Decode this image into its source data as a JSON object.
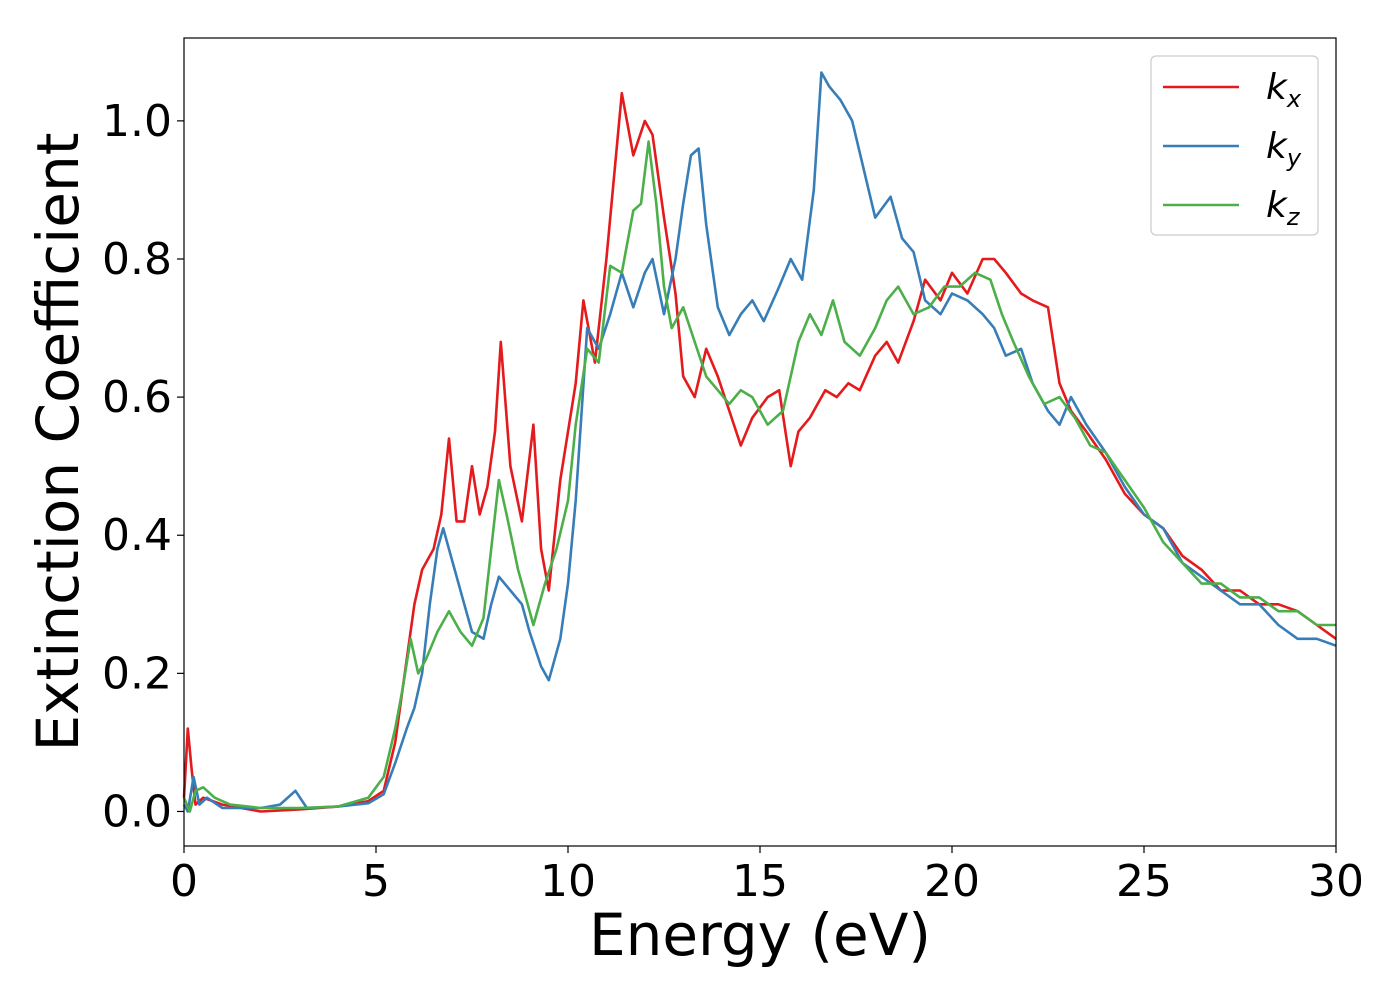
{
  "chart_data": {
    "type": "line",
    "xlabel": "Energy (eV)",
    "ylabel": "Extinction Coefficient",
    "xlim": [
      0,
      30
    ],
    "ylim": [
      -0.05,
      1.12
    ],
    "xticks": [
      "0",
      "5",
      "10",
      "15",
      "20",
      "25",
      "30"
    ],
    "yticks": [
      "0.0",
      "0.2",
      "0.4",
      "0.6",
      "0.8",
      "1.0"
    ],
    "grid": false,
    "legend_position": "top-right",
    "series": [
      {
        "name": "kx",
        "base": "k",
        "sub": "x",
        "color": "#e41a1c",
        "points": [
          [
            0,
            0.02
          ],
          [
            0.1,
            0.12
          ],
          [
            0.2,
            0.06
          ],
          [
            0.3,
            0.01
          ],
          [
            0.5,
            0.02
          ],
          [
            1,
            0.01
          ],
          [
            2,
            0.0
          ],
          [
            3,
            0.003
          ],
          [
            4,
            0.007
          ],
          [
            4.8,
            0.015
          ],
          [
            5.2,
            0.03
          ],
          [
            5.5,
            0.1
          ],
          [
            5.8,
            0.22
          ],
          [
            6.0,
            0.3
          ],
          [
            6.2,
            0.35
          ],
          [
            6.5,
            0.38
          ],
          [
            6.7,
            0.43
          ],
          [
            6.9,
            0.54
          ],
          [
            7.1,
            0.42
          ],
          [
            7.3,
            0.42
          ],
          [
            7.5,
            0.5
          ],
          [
            7.7,
            0.43
          ],
          [
            7.9,
            0.47
          ],
          [
            8.1,
            0.55
          ],
          [
            8.25,
            0.68
          ],
          [
            8.5,
            0.5
          ],
          [
            8.8,
            0.42
          ],
          [
            9.1,
            0.56
          ],
          [
            9.3,
            0.38
          ],
          [
            9.5,
            0.32
          ],
          [
            9.8,
            0.48
          ],
          [
            10.2,
            0.62
          ],
          [
            10.4,
            0.74
          ],
          [
            10.7,
            0.65
          ],
          [
            11.0,
            0.8
          ],
          [
            11.2,
            0.92
          ],
          [
            11.4,
            1.04
          ],
          [
            11.7,
            0.95
          ],
          [
            12.0,
            1.0
          ],
          [
            12.2,
            0.98
          ],
          [
            12.5,
            0.86
          ],
          [
            12.8,
            0.75
          ],
          [
            13.0,
            0.63
          ],
          [
            13.3,
            0.6
          ],
          [
            13.6,
            0.67
          ],
          [
            13.9,
            0.63
          ],
          [
            14.2,
            0.58
          ],
          [
            14.5,
            0.53
          ],
          [
            14.8,
            0.57
          ],
          [
            15.2,
            0.6
          ],
          [
            15.5,
            0.61
          ],
          [
            15.8,
            0.5
          ],
          [
            16.0,
            0.55
          ],
          [
            16.3,
            0.57
          ],
          [
            16.7,
            0.61
          ],
          [
            17.0,
            0.6
          ],
          [
            17.3,
            0.62
          ],
          [
            17.6,
            0.61
          ],
          [
            18.0,
            0.66
          ],
          [
            18.3,
            0.68
          ],
          [
            18.6,
            0.65
          ],
          [
            19.0,
            0.71
          ],
          [
            19.3,
            0.77
          ],
          [
            19.7,
            0.74
          ],
          [
            20.0,
            0.78
          ],
          [
            20.4,
            0.75
          ],
          [
            20.8,
            0.8
          ],
          [
            21.1,
            0.8
          ],
          [
            21.4,
            0.78
          ],
          [
            21.8,
            0.75
          ],
          [
            22.1,
            0.74
          ],
          [
            22.5,
            0.73
          ],
          [
            22.8,
            0.62
          ],
          [
            23.1,
            0.58
          ],
          [
            23.5,
            0.55
          ],
          [
            24.0,
            0.51
          ],
          [
            24.5,
            0.46
          ],
          [
            25.0,
            0.43
          ],
          [
            25.5,
            0.41
          ],
          [
            26.0,
            0.37
          ],
          [
            26.5,
            0.35
          ],
          [
            27.0,
            0.32
          ],
          [
            27.5,
            0.32
          ],
          [
            28.0,
            0.3
          ],
          [
            28.5,
            0.3
          ],
          [
            29.0,
            0.29
          ],
          [
            29.5,
            0.27
          ],
          [
            30.0,
            0.25
          ]
        ]
      },
      {
        "name": "ky",
        "base": "k",
        "sub": "y",
        "color": "#377eb8",
        "points": [
          [
            0,
            0.01
          ],
          [
            0.1,
            0.0
          ],
          [
            0.25,
            0.05
          ],
          [
            0.4,
            0.01
          ],
          [
            0.6,
            0.02
          ],
          [
            1,
            0.005
          ],
          [
            2,
            0.005
          ],
          [
            2.5,
            0.01
          ],
          [
            2.9,
            0.03
          ],
          [
            3.2,
            0.005
          ],
          [
            4,
            0.007
          ],
          [
            4.8,
            0.012
          ],
          [
            5.2,
            0.025
          ],
          [
            5.5,
            0.07
          ],
          [
            5.8,
            0.12
          ],
          [
            6.0,
            0.15
          ],
          [
            6.2,
            0.2
          ],
          [
            6.4,
            0.3
          ],
          [
            6.6,
            0.38
          ],
          [
            6.75,
            0.41
          ],
          [
            7.0,
            0.36
          ],
          [
            7.3,
            0.3
          ],
          [
            7.5,
            0.26
          ],
          [
            7.8,
            0.25
          ],
          [
            8.0,
            0.3
          ],
          [
            8.2,
            0.34
          ],
          [
            8.5,
            0.32
          ],
          [
            8.8,
            0.3
          ],
          [
            9.0,
            0.26
          ],
          [
            9.3,
            0.21
          ],
          [
            9.5,
            0.19
          ],
          [
            9.8,
            0.25
          ],
          [
            10.0,
            0.33
          ],
          [
            10.2,
            0.45
          ],
          [
            10.5,
            0.7
          ],
          [
            10.8,
            0.67
          ],
          [
            11.1,
            0.72
          ],
          [
            11.4,
            0.78
          ],
          [
            11.7,
            0.73
          ],
          [
            12.0,
            0.78
          ],
          [
            12.2,
            0.8
          ],
          [
            12.5,
            0.72
          ],
          [
            12.8,
            0.8
          ],
          [
            13.0,
            0.88
          ],
          [
            13.2,
            0.95
          ],
          [
            13.4,
            0.96
          ],
          [
            13.6,
            0.85
          ],
          [
            13.9,
            0.73
          ],
          [
            14.2,
            0.69
          ],
          [
            14.5,
            0.72
          ],
          [
            14.8,
            0.74
          ],
          [
            15.1,
            0.71
          ],
          [
            15.5,
            0.76
          ],
          [
            15.8,
            0.8
          ],
          [
            16.1,
            0.77
          ],
          [
            16.4,
            0.9
          ],
          [
            16.6,
            1.07
          ],
          [
            16.8,
            1.05
          ],
          [
            17.1,
            1.03
          ],
          [
            17.4,
            1.0
          ],
          [
            17.7,
            0.93
          ],
          [
            18.0,
            0.86
          ],
          [
            18.4,
            0.89
          ],
          [
            18.7,
            0.83
          ],
          [
            19.0,
            0.81
          ],
          [
            19.3,
            0.74
          ],
          [
            19.7,
            0.72
          ],
          [
            20.0,
            0.75
          ],
          [
            20.4,
            0.74
          ],
          [
            20.8,
            0.72
          ],
          [
            21.1,
            0.7
          ],
          [
            21.4,
            0.66
          ],
          [
            21.8,
            0.67
          ],
          [
            22.1,
            0.62
          ],
          [
            22.5,
            0.58
          ],
          [
            22.8,
            0.56
          ],
          [
            23.1,
            0.6
          ],
          [
            23.5,
            0.56
          ],
          [
            24.0,
            0.52
          ],
          [
            24.5,
            0.47
          ],
          [
            25.0,
            0.43
          ],
          [
            25.5,
            0.41
          ],
          [
            26.0,
            0.36
          ],
          [
            26.5,
            0.34
          ],
          [
            27.0,
            0.32
          ],
          [
            27.5,
            0.3
          ],
          [
            28.0,
            0.3
          ],
          [
            28.5,
            0.27
          ],
          [
            29.0,
            0.25
          ],
          [
            29.5,
            0.25
          ],
          [
            30.0,
            0.24
          ]
        ]
      },
      {
        "name": "kz",
        "base": "k",
        "sub": "z",
        "color": "#4daf4a",
        "points": [
          [
            0,
            0.02
          ],
          [
            0.15,
            0.0
          ],
          [
            0.3,
            0.03
          ],
          [
            0.5,
            0.035
          ],
          [
            0.8,
            0.02
          ],
          [
            1.2,
            0.01
          ],
          [
            2,
            0.005
          ],
          [
            3,
            0.005
          ],
          [
            4,
            0.007
          ],
          [
            4.8,
            0.02
          ],
          [
            5.2,
            0.05
          ],
          [
            5.5,
            0.12
          ],
          [
            5.7,
            0.18
          ],
          [
            5.9,
            0.25
          ],
          [
            6.1,
            0.2
          ],
          [
            6.3,
            0.22
          ],
          [
            6.6,
            0.26
          ],
          [
            6.9,
            0.29
          ],
          [
            7.2,
            0.26
          ],
          [
            7.5,
            0.24
          ],
          [
            7.8,
            0.28
          ],
          [
            8.0,
            0.38
          ],
          [
            8.2,
            0.48
          ],
          [
            8.4,
            0.43
          ],
          [
            8.7,
            0.35
          ],
          [
            8.9,
            0.31
          ],
          [
            9.1,
            0.27
          ],
          [
            9.4,
            0.33
          ],
          [
            9.7,
            0.38
          ],
          [
            10.0,
            0.45
          ],
          [
            10.2,
            0.56
          ],
          [
            10.5,
            0.67
          ],
          [
            10.8,
            0.65
          ],
          [
            11.1,
            0.79
          ],
          [
            11.4,
            0.78
          ],
          [
            11.7,
            0.87
          ],
          [
            11.9,
            0.88
          ],
          [
            12.1,
            0.97
          ],
          [
            12.3,
            0.88
          ],
          [
            12.5,
            0.76
          ],
          [
            12.7,
            0.7
          ],
          [
            13.0,
            0.73
          ],
          [
            13.3,
            0.68
          ],
          [
            13.6,
            0.63
          ],
          [
            13.9,
            0.61
          ],
          [
            14.2,
            0.59
          ],
          [
            14.5,
            0.61
          ],
          [
            14.8,
            0.6
          ],
          [
            15.2,
            0.56
          ],
          [
            15.6,
            0.58
          ],
          [
            16.0,
            0.68
          ],
          [
            16.3,
            0.72
          ],
          [
            16.6,
            0.69
          ],
          [
            16.9,
            0.74
          ],
          [
            17.2,
            0.68
          ],
          [
            17.6,
            0.66
          ],
          [
            18.0,
            0.7
          ],
          [
            18.3,
            0.74
          ],
          [
            18.6,
            0.76
          ],
          [
            19.0,
            0.72
          ],
          [
            19.4,
            0.73
          ],
          [
            19.8,
            0.76
          ],
          [
            20.2,
            0.76
          ],
          [
            20.6,
            0.78
          ],
          [
            21.0,
            0.77
          ],
          [
            21.3,
            0.72
          ],
          [
            21.6,
            0.68
          ],
          [
            22.0,
            0.63
          ],
          [
            22.4,
            0.59
          ],
          [
            22.8,
            0.6
          ],
          [
            23.2,
            0.57
          ],
          [
            23.6,
            0.53
          ],
          [
            24.0,
            0.52
          ],
          [
            24.5,
            0.48
          ],
          [
            25.0,
            0.44
          ],
          [
            25.5,
            0.39
          ],
          [
            26.0,
            0.36
          ],
          [
            26.5,
            0.33
          ],
          [
            27.0,
            0.33
          ],
          [
            27.5,
            0.31
          ],
          [
            28.0,
            0.31
          ],
          [
            28.5,
            0.29
          ],
          [
            29.0,
            0.29
          ],
          [
            29.5,
            0.27
          ],
          [
            30.0,
            0.27
          ]
        ]
      }
    ]
  }
}
